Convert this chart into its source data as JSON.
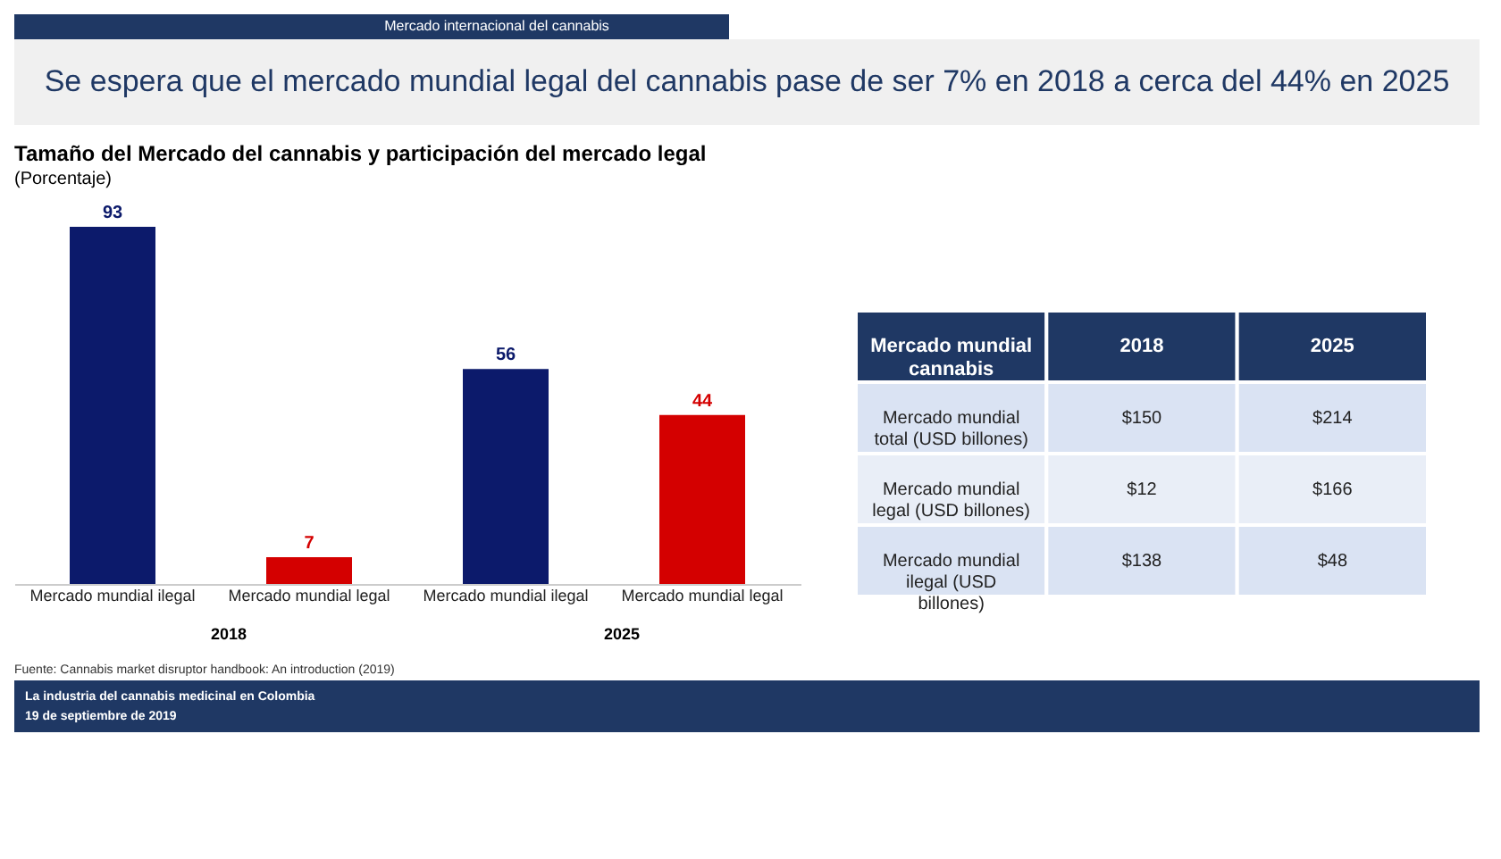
{
  "chart_data": [
    {
      "type": "bar",
      "title": "Tamaño del Mercado del cannabis y participación del mercado legal",
      "subtitle": "(Porcentaje)",
      "categories": [
        "Mercado mundial ilegal",
        "Mercado mundial legal",
        "Mercado mundial ilegal",
        "Mercado mundial legal"
      ],
      "values": [
        93,
        7,
        56,
        44
      ],
      "colors": [
        "#0c1a6b",
        "#d40000",
        "#0c1a6b",
        "#d40000"
      ],
      "data_labels": true,
      "annotations": [
        "Mercado internacional del cannabis",
        "Se espera que el mercado mundial legal del cannabis pase de ser 7% en 2018 a cerca del 44% en 2025",
        "2018",
        "2025",
        "Fuente: Cannabis market disruptor handbook: An introduction (2019)",
        "La industria del cannabis medicinal en Colombia",
        "19 de septiembre de 2019"
      ]
    },
    {
      "type": "other",
      "annotations": [
        "Mercado mundial cannabis",
        "2018",
        "2025",
        "Mercado mundial total (USD billones)",
        "$150",
        "$214",
        "Mercado mundial legal (USD billones)",
        "$12",
        "$166",
        "Mercado mundial ilegal (USD billones)",
        "$138",
        "$48"
      ]
    }
  ]
}
